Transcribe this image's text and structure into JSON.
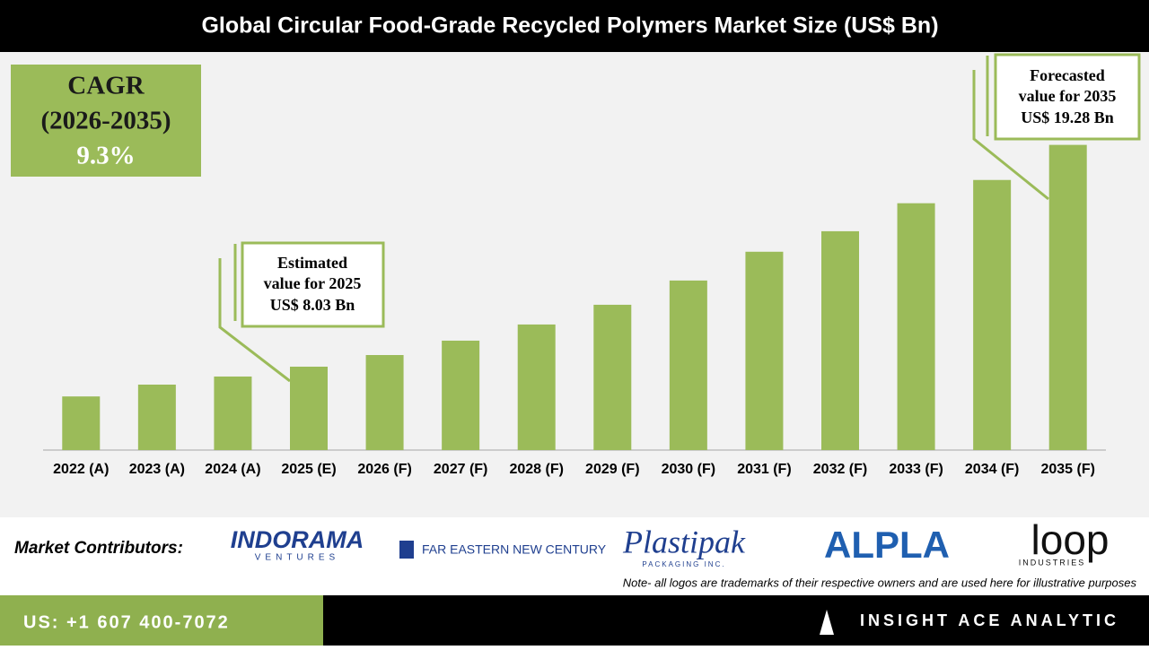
{
  "chart_data": {
    "type": "bar",
    "title": "Global Circular Food-Grade Recycled Polymers Market Size (US$ Bn)",
    "categories": [
      "2022 (A)",
      "2023 (A)",
      "2024 (A)",
      "2025 (E)",
      "2026 (F)",
      "2027 (F)",
      "2028 (F)",
      "2029 (F)",
      "2030 (F)",
      "2031 (F)",
      "2032 (F)",
      "2033 (F)",
      "2034 (F)",
      "2035 (F)"
    ],
    "values": [
      6.52,
      7.12,
      7.53,
      8.03,
      8.62,
      9.35,
      10.17,
      11.17,
      12.4,
      13.86,
      14.9,
      16.32,
      17.5,
      19.28
    ],
    "color": "#9bbb59",
    "ylim": [
      3.8,
      23.9
    ],
    "cagr": [
      "CAGR",
      "(2026-2035)",
      "9.3%"
    ],
    "estimate_callout": [
      "Estimated",
      "value for 2025",
      "US$ 8.03 Bn"
    ],
    "forecast_callout": [
      "Forecasted",
      "value for 2035",
      "US$ 19.28 Bn"
    ]
  },
  "contributors": {
    "label": "Market Contributors:",
    "logos": [
      [
        "INDORAMA",
        "VENTURES"
      ],
      [
        "FAR EASTERN NEW CENTURY"
      ],
      [
        "Plastipak",
        "PACKAGING INC."
      ],
      [
        "ALPLA"
      ],
      [
        "loop",
        "INDUSTRIES"
      ]
    ],
    "note": "Note- all logos are trademarks of their respective owners and are used here for illustrative purposes"
  },
  "footer": {
    "phone": "US: +1 607 400-7072",
    "brand": "INSIGHT ACE ANALYTIC"
  }
}
